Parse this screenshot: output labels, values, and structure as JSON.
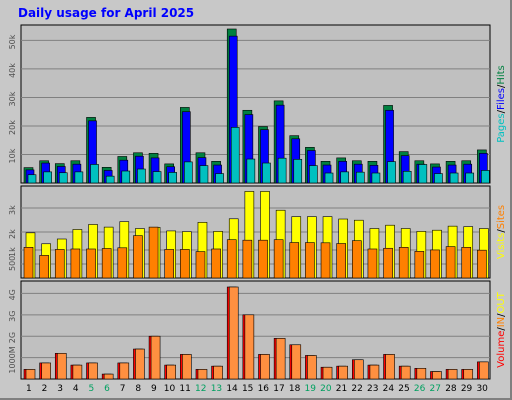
{
  "chart_data": [
    {
      "type": "bar",
      "title": "Daily usage for April 2025",
      "panel": "pages-files-hits",
      "y_ticks": [
        "10k",
        "20k",
        "30k",
        "40k",
        "50k"
      ],
      "y_max": 54000,
      "right_labels": [
        {
          "text": "Pages",
          "color": "#00c0c0"
        },
        {
          "text": "Files",
          "color": "#0000ff"
        },
        {
          "text": "Hits",
          "color": "#008040"
        }
      ],
      "series": [
        {
          "name": "Hits",
          "color": "#008040",
          "values": [
            5400,
            7800,
            6800,
            7800,
            23000,
            5500,
            9300,
            10600,
            10400,
            6700,
            26500,
            10600,
            7600,
            54000,
            25500,
            19800,
            28800,
            16600,
            12500,
            7600,
            8800,
            7800,
            7600,
            27200,
            11000,
            7800,
            6700,
            7600,
            7800,
            11600
          ]
        },
        {
          "name": "Files",
          "color": "#0000ff",
          "values": [
            4600,
            7000,
            5800,
            6600,
            21800,
            4400,
            8000,
            9400,
            8800,
            5700,
            25000,
            8900,
            6300,
            51500,
            24000,
            18700,
            27300,
            15500,
            11400,
            6300,
            7600,
            6600,
            6200,
            25500,
            9600,
            6600,
            5600,
            6300,
            6600,
            10400
          ]
        },
        {
          "name": "Pages",
          "color": "#00c0c0",
          "values": [
            2900,
            3900,
            3600,
            3900,
            6500,
            2400,
            4200,
            4900,
            4000,
            3700,
            7400,
            6100,
            3300,
            19500,
            8400,
            7000,
            8700,
            8300,
            6100,
            3500,
            3900,
            3800,
            3500,
            7500,
            4100,
            6500,
            3300,
            3500,
            3500,
            4400
          ]
        }
      ]
    },
    {
      "type": "bar",
      "panel": "visits-sites",
      "y_ticks": [
        "500",
        "1k",
        "2k",
        "3k"
      ],
      "y_max": 3700,
      "right_labels": [
        {
          "text": "Visits",
          "color": "#ffff00"
        },
        {
          "text": "Sites",
          "color": "#ff8000"
        }
      ],
      "series": [
        {
          "name": "Visits",
          "color": "#ffff00",
          "values": [
            1900,
            1440,
            1640,
            2040,
            2250,
            2140,
            2370,
            2080,
            2130,
            1980,
            1950,
            2340,
            1960,
            2490,
            3640,
            3640,
            2850,
            2580,
            2580,
            2580,
            2480,
            2430,
            2080,
            2220,
            2080,
            1960,
            2010,
            2180,
            2160,
            2080
          ]
        },
        {
          "name": "Sites",
          "color": "#ff8000",
          "values": [
            1290,
            950,
            1200,
            1220,
            1220,
            1240,
            1270,
            1780,
            2140,
            1200,
            1200,
            1110,
            1220,
            1610,
            1590,
            1590,
            1610,
            1490,
            1490,
            1480,
            1450,
            1570,
            1220,
            1250,
            1290,
            1120,
            1180,
            1320,
            1290,
            1170
          ]
        }
      ]
    },
    {
      "type": "bar",
      "panel": "volume",
      "y_ticks": [
        "1000M",
        "2G",
        "3G",
        "4G"
      ],
      "y_max": 4.3,
      "right_labels": [
        {
          "text": "Volume",
          "color": "#ff0000"
        },
        {
          "text": "IN",
          "color": "#ff8000"
        },
        {
          "text": "OUT",
          "color": "#ffff00"
        }
      ],
      "series": [
        {
          "name": "Volume",
          "color": "#ff0000",
          "values": [
            0.45,
            0.75,
            1.2,
            0.65,
            0.75,
            0.23,
            0.75,
            1.4,
            2.0,
            0.65,
            1.15,
            0.45,
            0.6,
            4.3,
            3.0,
            1.15,
            1.9,
            1.6,
            1.1,
            0.55,
            0.6,
            0.9,
            0.65,
            1.15,
            0.6,
            0.5,
            0.35,
            0.45,
            0.45,
            0.8
          ]
        },
        {
          "name": "IN",
          "color": "#ff8000",
          "values": [
            0.45,
            0.75,
            1.2,
            0.65,
            0.75,
            0.23,
            0.75,
            1.4,
            2.0,
            0.65,
            1.15,
            0.45,
            0.6,
            4.3,
            3.0,
            1.15,
            1.9,
            1.6,
            1.1,
            0.55,
            0.6,
            0.9,
            0.65,
            1.15,
            0.6,
            0.5,
            0.35,
            0.45,
            0.45,
            0.8
          ]
        }
      ]
    }
  ],
  "x_labels": [
    "1",
    "2",
    "3",
    "4",
    "5",
    "6",
    "7",
    "8",
    "9",
    "10",
    "11",
    "12",
    "13",
    "14",
    "15",
    "16",
    "17",
    "18",
    "19",
    "20",
    "21",
    "22",
    "23",
    "24",
    "25",
    "26",
    "27",
    "28",
    "29",
    "30"
  ],
  "weekend_days": [
    "5",
    "6",
    "12",
    "13",
    "19",
    "20",
    "26",
    "27"
  ],
  "colors": {
    "weekend": "#00a060",
    "weekday": "#000000",
    "title": "#0000ff",
    "background": "#c0c0c0",
    "grid": "#808080"
  }
}
